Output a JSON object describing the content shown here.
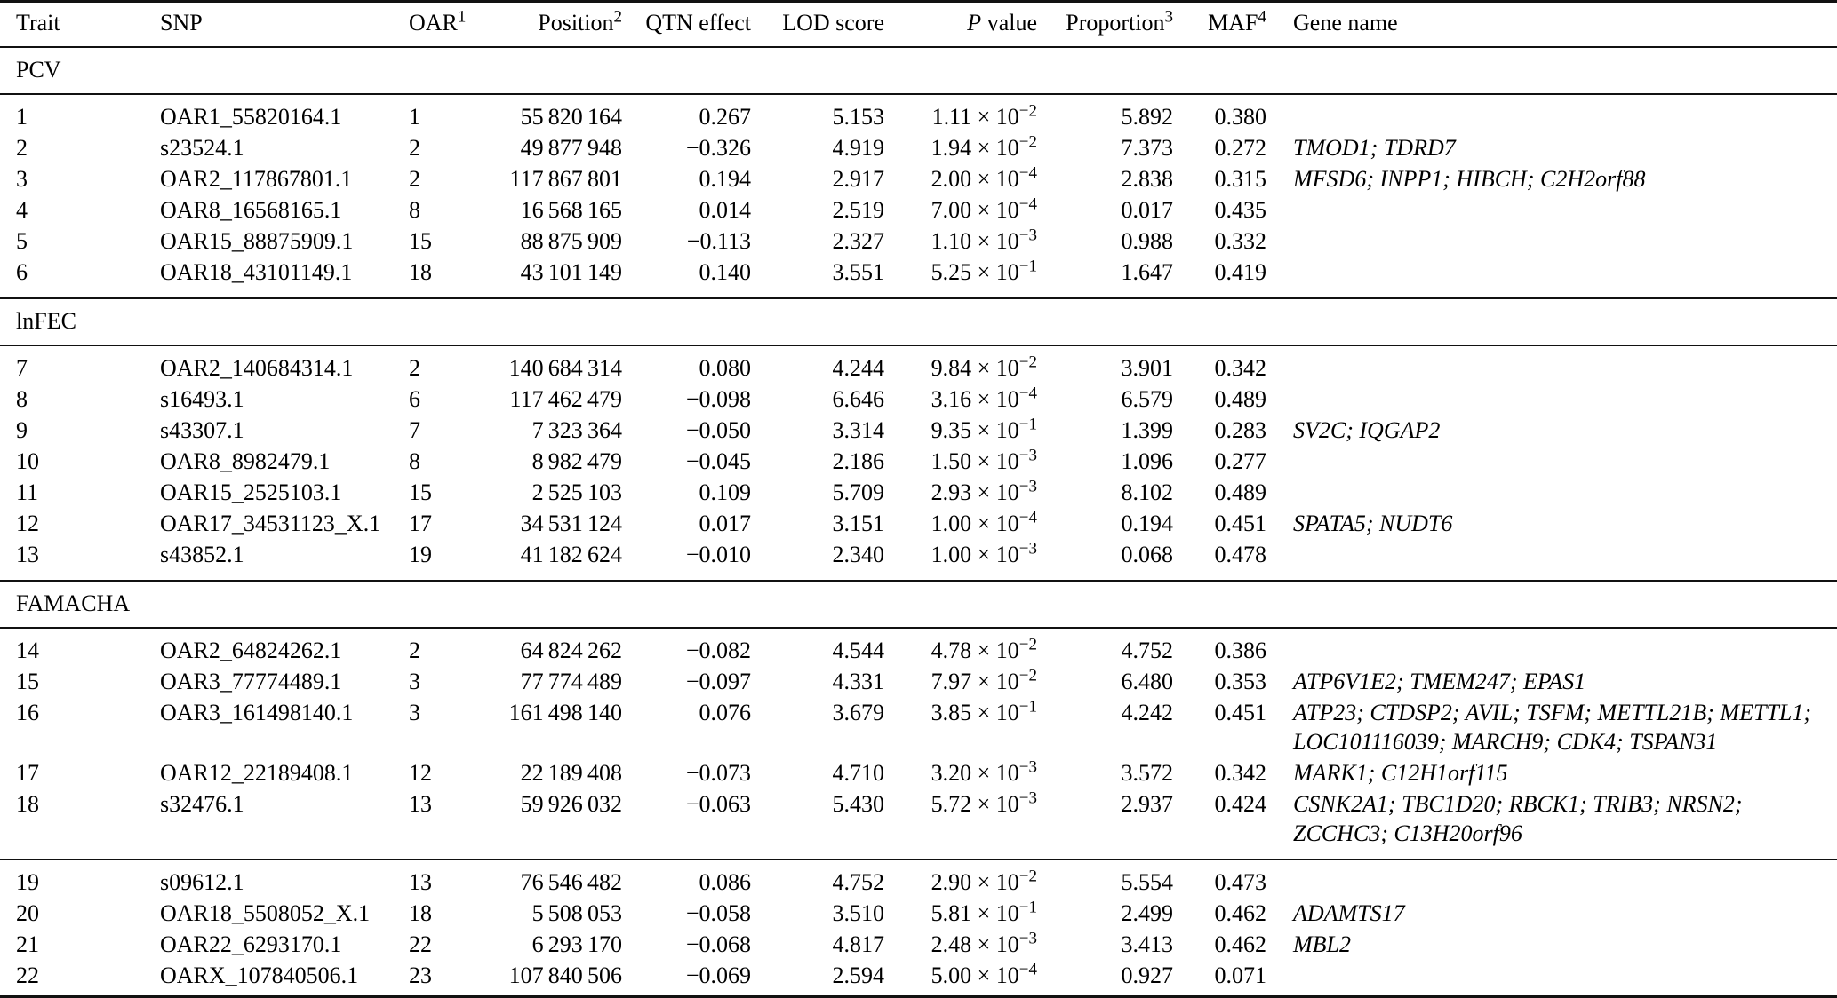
{
  "table": {
    "columns": [
      {
        "key": "trait",
        "label": "Trait",
        "sup": "",
        "italic_prefix": "",
        "align": "left"
      },
      {
        "key": "snp",
        "label": "SNP",
        "sup": "",
        "italic_prefix": "",
        "align": "left"
      },
      {
        "key": "oar",
        "label": "OAR",
        "sup": "1",
        "italic_prefix": "",
        "align": "left"
      },
      {
        "key": "position",
        "label": "Position",
        "sup": "2",
        "italic_prefix": "",
        "align": "right"
      },
      {
        "key": "qtn",
        "label": "QTN effect",
        "sup": "",
        "italic_prefix": "",
        "align": "right"
      },
      {
        "key": "lod",
        "label": "LOD score",
        "sup": "",
        "italic_prefix": "",
        "align": "right"
      },
      {
        "key": "pvalue",
        "label": " value",
        "sup": "",
        "italic_prefix": "P",
        "align": "right"
      },
      {
        "key": "proportion",
        "label": "Proportion",
        "sup": "3",
        "italic_prefix": "",
        "align": "right"
      },
      {
        "key": "maf",
        "label": "MAF",
        "sup": "4",
        "italic_prefix": "",
        "align": "right"
      },
      {
        "key": "gene",
        "label": "Gene name",
        "sup": "",
        "italic_prefix": "",
        "align": "left"
      }
    ],
    "times_symbol": "×",
    "power_base": "10",
    "sections": [
      {
        "label": "PCV",
        "groups": [
          [
            {
              "trait": "1",
              "snp": "OAR1_55820164.1",
              "oar": "1",
              "position": "55 820 164",
              "qtn": "0.267",
              "lod": "5.153",
              "p_m": "1.11",
              "p_e": "−2",
              "proportion": "5.892",
              "maf": "0.380",
              "gene": ""
            },
            {
              "trait": "2",
              "snp": "s23524.1",
              "oar": "2",
              "position": "49 877 948",
              "qtn": "−0.326",
              "lod": "4.919",
              "p_m": "1.94",
              "p_e": "−2",
              "proportion": "7.373",
              "maf": "0.272",
              "gene": "TMOD1; TDRD7"
            },
            {
              "trait": "3",
              "snp": "OAR2_117867801.1",
              "oar": "2",
              "position": "117 867 801",
              "qtn": "0.194",
              "lod": "2.917",
              "p_m": "2.00",
              "p_e": "−4",
              "proportion": "2.838",
              "maf": "0.315",
              "gene": "MFSD6; INPP1; HIBCH; C2H2orf88"
            },
            {
              "trait": "4",
              "snp": "OAR8_16568165.1",
              "oar": "8",
              "position": "16 568 165",
              "qtn": "0.014",
              "lod": "2.519",
              "p_m": "7.00",
              "p_e": "−4",
              "proportion": "0.017",
              "maf": "0.435",
              "gene": ""
            },
            {
              "trait": "5",
              "snp": "OAR15_88875909.1",
              "oar": "15",
              "position": "88 875 909",
              "qtn": "−0.113",
              "lod": "2.327",
              "p_m": "1.10",
              "p_e": "−3",
              "proportion": "0.988",
              "maf": "0.332",
              "gene": ""
            },
            {
              "trait": "6",
              "snp": "OAR18_43101149.1",
              "oar": "18",
              "position": "43 101 149",
              "qtn": "0.140",
              "lod": "3.551",
              "p_m": "5.25",
              "p_e": "−1",
              "proportion": "1.647",
              "maf": "0.419",
              "gene": ""
            }
          ]
        ]
      },
      {
        "label": "lnFEC",
        "groups": [
          [
            {
              "trait": "7",
              "snp": "OAR2_140684314.1",
              "oar": "2",
              "position": "140 684 314",
              "qtn": "0.080",
              "lod": "4.244",
              "p_m": "9.84",
              "p_e": "−2",
              "proportion": "3.901",
              "maf": "0.342",
              "gene": ""
            },
            {
              "trait": "8",
              "snp": "s16493.1",
              "oar": "6",
              "position": "117 462 479",
              "qtn": "−0.098",
              "lod": "6.646",
              "p_m": "3.16",
              "p_e": "−4",
              "proportion": "6.579",
              "maf": "0.489",
              "gene": ""
            },
            {
              "trait": "9",
              "snp": "s43307.1",
              "oar": "7",
              "position": "7 323 364",
              "qtn": "−0.050",
              "lod": "3.314",
              "p_m": "9.35",
              "p_e": "−1",
              "proportion": "1.399",
              "maf": "0.283",
              "gene": "SV2C; IQGAP2"
            },
            {
              "trait": "10",
              "snp": "OAR8_8982479.1",
              "oar": "8",
              "position": "8 982 479",
              "qtn": "−0.045",
              "lod": "2.186",
              "p_m": "1.50",
              "p_e": "−3",
              "proportion": "1.096",
              "maf": "0.277",
              "gene": ""
            },
            {
              "trait": "11",
              "snp": "OAR15_2525103.1",
              "oar": "15",
              "position": "2 525 103",
              "qtn": "0.109",
              "lod": "5.709",
              "p_m": "2.93",
              "p_e": "−3",
              "proportion": "8.102",
              "maf": "0.489",
              "gene": ""
            },
            {
              "trait": "12",
              "snp": "OAR17_34531123_X.1",
              "oar": "17",
              "position": "34 531 124",
              "qtn": "0.017",
              "lod": "3.151",
              "p_m": "1.00",
              "p_e": "−4",
              "proportion": "0.194",
              "maf": "0.451",
              "gene": "SPATA5; NUDT6"
            },
            {
              "trait": "13",
              "snp": "s43852.1",
              "oar": "19",
              "position": "41 182 624",
              "qtn": "−0.010",
              "lod": "2.340",
              "p_m": "1.00",
              "p_e": "−3",
              "proportion": "0.068",
              "maf": "0.478",
              "gene": ""
            }
          ]
        ]
      },
      {
        "label": "FAMACHA",
        "groups": [
          [
            {
              "trait": "14",
              "snp": "OAR2_64824262.1",
              "oar": "2",
              "position": "64 824 262",
              "qtn": "−0.082",
              "lod": "4.544",
              "p_m": "4.78",
              "p_e": "−2",
              "proportion": "4.752",
              "maf": "0.386",
              "gene": ""
            },
            {
              "trait": "15",
              "snp": "OAR3_77774489.1",
              "oar": "3",
              "position": "77 774 489",
              "qtn": "−0.097",
              "lod": "4.331",
              "p_m": "7.97",
              "p_e": "−2",
              "proportion": "6.480",
              "maf": "0.353",
              "gene": "ATP6V1E2; TMEM247; EPAS1"
            },
            {
              "trait": "16",
              "snp": "OAR3_161498140.1",
              "oar": "3",
              "position": "161 498 140",
              "qtn": "0.076",
              "lod": "3.679",
              "p_m": "3.85",
              "p_e": "−1",
              "proportion": "4.242",
              "maf": "0.451",
              "gene": "ATP23; CTDSP2; AVIL; TSFM; METTL21B; METTL1; LOC101116039; MARCH9; CDK4; TSPAN31"
            },
            {
              "trait": "17",
              "snp": "OAR12_22189408.1",
              "oar": "12",
              "position": "22 189 408",
              "qtn": "−0.073",
              "lod": "4.710",
              "p_m": "3.20",
              "p_e": "−3",
              "proportion": "3.572",
              "maf": "0.342",
              "gene": "MARK1; C12H1orf115"
            },
            {
              "trait": "18",
              "snp": "s32476.1",
              "oar": "13",
              "position": "59 926 032",
              "qtn": "−0.063",
              "lod": "5.430",
              "p_m": "5.72",
              "p_e": "−3",
              "proportion": "2.937",
              "maf": "0.424",
              "gene": "CSNK2A1; TBC1D20; RBCK1; TRIB3; NRSN2; ZCCHC3; C13H20orf96"
            }
          ],
          [
            {
              "trait": "19",
              "snp": "s09612.1",
              "oar": "13",
              "position": "76 546 482",
              "qtn": "0.086",
              "lod": "4.752",
              "p_m": "2.90",
              "p_e": "−2",
              "proportion": "5.554",
              "maf": "0.473",
              "gene": ""
            },
            {
              "trait": "20",
              "snp": "OAR18_5508052_X.1",
              "oar": "18",
              "position": "5 508 053",
              "qtn": "−0.058",
              "lod": "3.510",
              "p_m": "5.81",
              "p_e": "−1",
              "proportion": "2.499",
              "maf": "0.462",
              "gene": "ADAMTS17"
            },
            {
              "trait": "21",
              "snp": "OAR22_6293170.1",
              "oar": "22",
              "position": "6 293 170",
              "qtn": "−0.068",
              "lod": "4.817",
              "p_m": "2.48",
              "p_e": "−3",
              "proportion": "3.413",
              "maf": "0.462",
              "gene": "MBL2"
            },
            {
              "trait": "22",
              "snp": "OARX_107840506.1",
              "oar": "23",
              "position": "107 840 506",
              "qtn": "−0.069",
              "lod": "2.594",
              "p_m": "5.00",
              "p_e": "−4",
              "proportion": "0.927",
              "maf": "0.071",
              "gene": ""
            }
          ]
        ]
      }
    ]
  }
}
